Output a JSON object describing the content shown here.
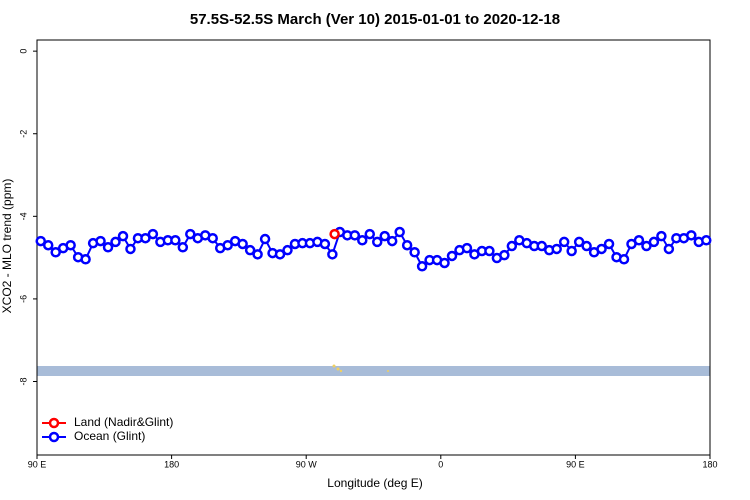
{
  "chart_data": {
    "type": "line",
    "title": "57.5S-52.5S March (Ver 10)   2015-01-01 to 2020-12-18",
    "x_label": "Longitude (deg E)",
    "y_label": "XCO2 - MLO trend (ppm)",
    "xlim": [
      90,
      540
    ],
    "xticks": [
      {
        "value": 90,
        "label": "90 E"
      },
      180,
      {
        "value": 270,
        "label": "90 W"
      },
      {
        "value": 360,
        "label": "0"
      },
      {
        "value": 450,
        "label": "90 E"
      },
      {
        "value": 540,
        "label": "180"
      }
    ],
    "ylim": [
      -9.78,
      0.27
    ],
    "yticks": [
      0,
      -2,
      -4,
      -6,
      -8
    ],
    "legend": "bottom-left",
    "series": [
      {
        "name": "Land (Nadir&Glint)",
        "color": "#ff0000",
        "x": [
          289
        ],
        "values": [
          -4.43
        ]
      },
      {
        "name": "Ocean (Glint)",
        "color": "#0000ff",
        "x": [
          92.5,
          97.5,
          102.5,
          107.5,
          112.5,
          117.5,
          122.5,
          127.5,
          132.5,
          137.5,
          142.5,
          147.5,
          152.5,
          157.5,
          162.5,
          167.5,
          172.5,
          177.5,
          182.5,
          187.5,
          192.5,
          197.5,
          202.5,
          207.5,
          212.5,
          217.5,
          222.5,
          227.5,
          232.5,
          237.5,
          242.5,
          247.5,
          252.5,
          257.5,
          262.5,
          267.5,
          272.5,
          277.5,
          282.5,
          287.5,
          292.5,
          297.5,
          302.5,
          307.5,
          312.5,
          317.5,
          322.5,
          327.5,
          332.5,
          337.5,
          342.5,
          347.5,
          352.5,
          357.5,
          362.5,
          367.5,
          372.5,
          377.5,
          382.5,
          387.5,
          392.5,
          397.5,
          402.5,
          407.5,
          412.5,
          417.5,
          422.5,
          427.5,
          432.5,
          437.5,
          442.5,
          447.5,
          452.5,
          457.5,
          462.5,
          467.5,
          472.5,
          477.5,
          482.5,
          487.5,
          492.5,
          497.5,
          502.5,
          507.5,
          512.5,
          517.5,
          522.5,
          527.5,
          532.5,
          537.5
        ],
        "values": [
          -4.6,
          -4.7,
          -4.87,
          -4.77,
          -4.7,
          -4.99,
          -5.04,
          -4.65,
          -4.6,
          -4.75,
          -4.62,
          -4.48,
          -4.79,
          -4.53,
          -4.53,
          -4.43,
          -4.62,
          -4.58,
          -4.58,
          -4.75,
          -4.43,
          -4.53,
          -4.46,
          -4.53,
          -4.77,
          -4.7,
          -4.6,
          -4.67,
          -4.82,
          -4.92,
          -4.55,
          -4.89,
          -4.92,
          -4.82,
          -4.67,
          -4.65,
          -4.65,
          -4.62,
          -4.67,
          -4.92,
          -4.38,
          -4.46,
          -4.46,
          -4.58,
          -4.43,
          -4.62,
          -4.48,
          -4.6,
          -4.38,
          -4.7,
          -4.87,
          -5.21,
          -5.06,
          -5.06,
          -5.13,
          -4.96,
          -4.82,
          -4.77,
          -4.92,
          -4.84,
          -4.84,
          -5.01,
          -4.94,
          -4.72,
          -4.58,
          -4.65,
          -4.72,
          -4.72,
          -4.82,
          -4.79,
          -4.62,
          -4.84,
          -4.62,
          -4.72,
          -4.87,
          -4.79,
          -4.67,
          -4.99,
          -5.04,
          -4.67,
          -4.58,
          -4.72,
          -4.62,
          -4.48,
          -4.79,
          -4.53,
          -4.53,
          -4.46,
          -4.62,
          -4.58
        ]
      }
    ]
  }
}
